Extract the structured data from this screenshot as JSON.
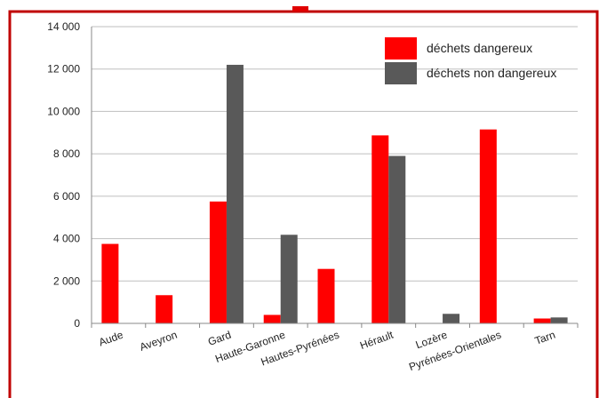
{
  "colors": {
    "frame": "#C00000",
    "danger": "#FF0000",
    "non_danger": "#595959",
    "grid": "#BFBFBF",
    "axis": "#888888"
  },
  "chart_data": {
    "type": "bar",
    "categories": [
      "Aude",
      "Aveyron",
      "Gard",
      "Haute-Garonne",
      "Hautes-Pyrénées",
      "Hérault",
      "Lozère",
      "Pyrénées-Orientales",
      "Tarn"
    ],
    "series": [
      {
        "name": "déchets dangereux",
        "color": "#FF0000",
        "values": [
          3750,
          1330,
          5750,
          400,
          2570,
          8870,
          0,
          9150,
          230
        ]
      },
      {
        "name": "déchets non dangereux",
        "color": "#595959",
        "values": [
          0,
          0,
          12200,
          4180,
          0,
          7900,
          450,
          0,
          280
        ]
      }
    ],
    "ylim": [
      0,
      14000
    ],
    "yticks": [
      0,
      2000,
      4000,
      6000,
      8000,
      10000,
      12000,
      14000
    ],
    "ytick_labels": [
      "0",
      "2 000",
      "4 000",
      "6 000",
      "8 000",
      "10 000",
      "12 000",
      "14 000"
    ],
    "grid": true,
    "legend_position": "top-right",
    "title": "",
    "xlabel": "",
    "ylabel": ""
  }
}
